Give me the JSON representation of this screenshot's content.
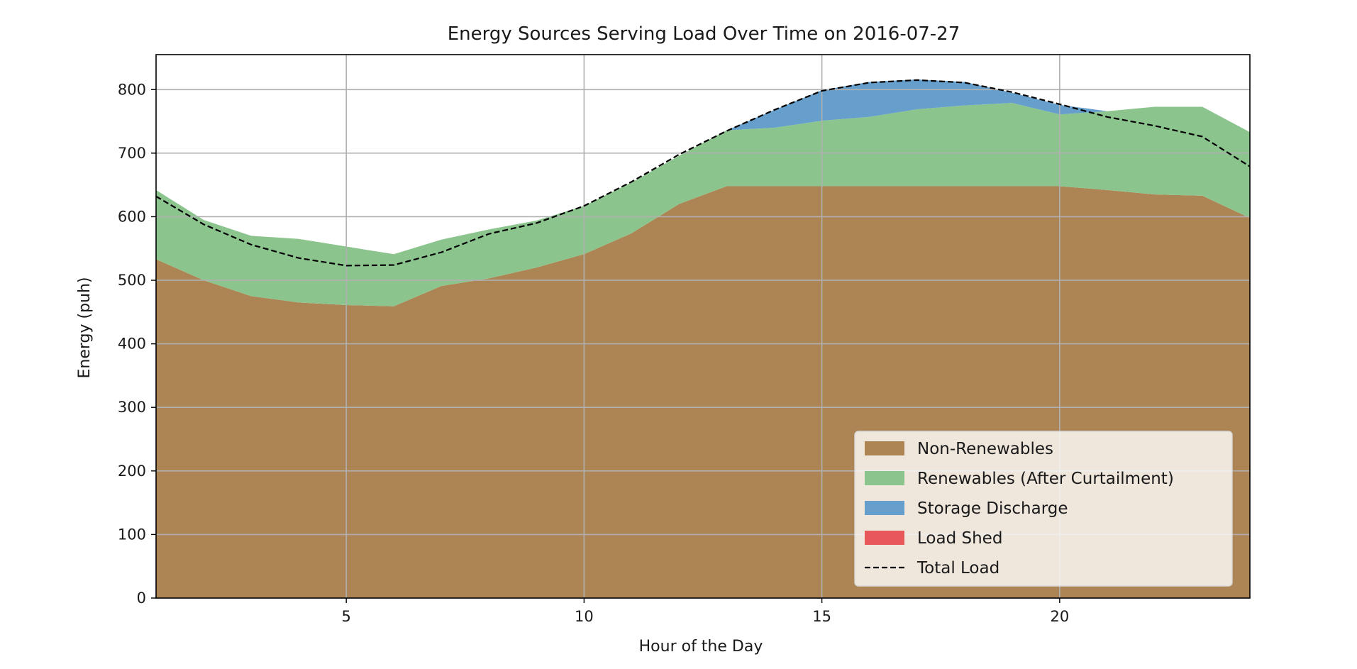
{
  "chart_data": {
    "type": "area",
    "title": "Energy Sources Serving Load Over Time on 2016-07-27",
    "xlabel": "Hour of the Day",
    "ylabel": "Energy (puh)",
    "xlim": [
      1,
      24
    ],
    "ylim": [
      0,
      855
    ],
    "xticks": [
      5,
      10,
      15,
      20
    ],
    "yticks": [
      0,
      100,
      200,
      300,
      400,
      500,
      600,
      700,
      800
    ],
    "grid": true,
    "legend_position": "lower-right",
    "x": [
      1,
      2,
      3,
      4,
      5,
      6,
      7,
      8,
      9,
      10,
      11,
      12,
      13,
      14,
      15,
      16,
      17,
      18,
      19,
      20,
      21,
      22,
      23,
      24
    ],
    "series": [
      {
        "name": "Non-Renewables",
        "kind": "stacked-area",
        "color": "#ad8453",
        "values": [
          533,
          500,
          475,
          465,
          461,
          459,
          491,
          503,
          520,
          541,
          574,
          620,
          648,
          648,
          648,
          648,
          648,
          648,
          648,
          648,
          642,
          635,
          633,
          598
        ]
      },
      {
        "name": "Renewables (After Curtailment)",
        "kind": "stacked-area",
        "color": "#8cc48e",
        "values": [
          109,
          95,
          95,
          100,
          92,
          82,
          73,
          77,
          74,
          76,
          80,
          76,
          88,
          92,
          103,
          109,
          121,
          127,
          131,
          113,
          124,
          138,
          140,
          135
        ]
      },
      {
        "name": "Storage Discharge",
        "kind": "stacked-area",
        "color": "#669fcb",
        "values": [
          0,
          0,
          0,
          0,
          0,
          0,
          0,
          0,
          0,
          0,
          0,
          0,
          0,
          28,
          48,
          55,
          47,
          37,
          16,
          15,
          0,
          0,
          0,
          0
        ]
      },
      {
        "name": "Load Shed",
        "kind": "stacked-area",
        "color": "#e8585b",
        "values": [
          0,
          0,
          0,
          0,
          0,
          0,
          0,
          0,
          0,
          0,
          0,
          0,
          0,
          0,
          0,
          0,
          0,
          0,
          0,
          0,
          0,
          0,
          0,
          0
        ]
      },
      {
        "name": "Total Load",
        "kind": "dashed-line",
        "color": "#000000",
        "values": [
          632,
          588,
          556,
          535,
          523,
          524,
          544,
          573,
          590,
          617,
          655,
          698,
          735,
          768,
          798,
          811,
          815,
          811,
          796,
          777,
          757,
          743,
          726,
          679
        ]
      }
    ]
  }
}
